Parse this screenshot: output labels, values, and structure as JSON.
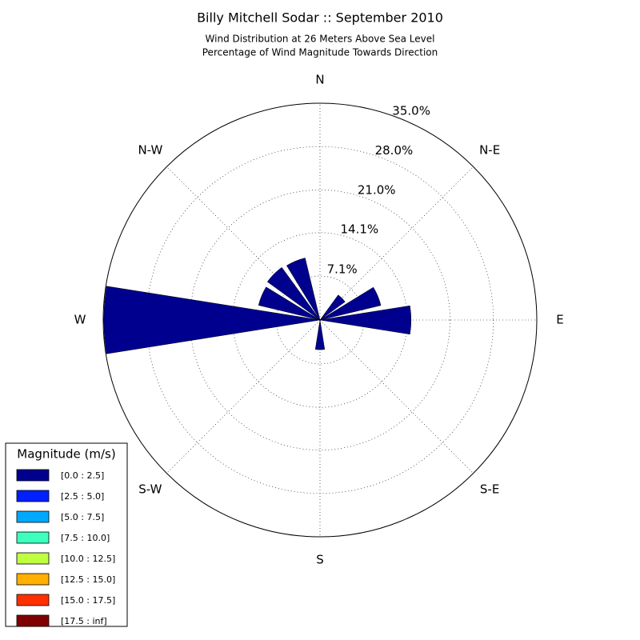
{
  "chart_data": {
    "type": "windrose",
    "title": "Billy Mitchell Sodar :: September 2010",
    "subtitle": [
      "Wind Distribution at 26 Meters Above Sea Level",
      "Percentage of Wind Magnitude Towards Direction"
    ],
    "categories": [
      "N",
      null,
      "N-E",
      null,
      "E",
      null,
      "S-E",
      null,
      "S",
      null,
      "S-W",
      null,
      "W",
      null,
      "N-W",
      null
    ],
    "ylim": [
      0,
      35
    ],
    "yticks": [
      {
        "value": 7.1,
        "label": "7.1%"
      },
      {
        "value": 14.1,
        "label": "14.1%"
      },
      {
        "value": 21.0,
        "label": "21.0%"
      },
      {
        "value": 28.0,
        "label": "28.0%"
      },
      {
        "value": 35.0,
        "label": "35.0%"
      }
    ],
    "legend_title": "Magnitude (m/s)",
    "legend_position": "lower left",
    "series": [
      {
        "name": "[0.0 : 2.5]",
        "color": "#00008f",
        "values": [
          0,
          0,
          5.0,
          10.1,
          14.7,
          0,
          0,
          0,
          4.8,
          0,
          0,
          0,
          34.9,
          10.2,
          10.5,
          10.3
        ]
      },
      {
        "name": "[2.5 : 5.0]",
        "color": "#0020ff",
        "values": [
          0,
          0,
          0,
          0,
          0,
          0,
          0,
          0,
          0,
          0,
          0,
          0,
          0,
          0,
          0,
          0
        ]
      },
      {
        "name": "[5.0 : 7.5]",
        "color": "#00a8ff",
        "values": [
          0,
          0,
          0,
          0,
          0,
          0,
          0,
          0,
          0,
          0,
          0,
          0,
          0,
          0,
          0,
          0
        ]
      },
      {
        "name": "[7.5 : 10.0]",
        "color": "#3fffbf",
        "values": [
          0,
          0,
          0,
          0,
          0,
          0,
          0,
          0,
          0,
          0,
          0,
          0,
          0,
          0,
          0,
          0
        ]
      },
      {
        "name": "[10.0 : 12.5]",
        "color": "#bfff3f",
        "values": [
          0,
          0,
          0,
          0,
          0,
          0,
          0,
          0,
          0,
          0,
          0,
          0,
          0,
          0,
          0,
          0
        ]
      },
      {
        "name": "[12.5 : 15.0]",
        "color": "#ffb000",
        "values": [
          0,
          0,
          0,
          0,
          0,
          0,
          0,
          0,
          0,
          0,
          0,
          0,
          0,
          0,
          0,
          0
        ]
      },
      {
        "name": "[15.0 : 17.5]",
        "color": "#ff3000",
        "values": [
          0,
          0,
          0,
          0,
          0,
          0,
          0,
          0,
          0,
          0,
          0,
          0,
          0,
          0,
          0,
          0
        ]
      },
      {
        "name": "[17.5 : inf]",
        "color": "#800000",
        "values": [
          0,
          0,
          0,
          0,
          0,
          0,
          0,
          0,
          0,
          0,
          0,
          0,
          0,
          0,
          0,
          0
        ]
      }
    ]
  }
}
